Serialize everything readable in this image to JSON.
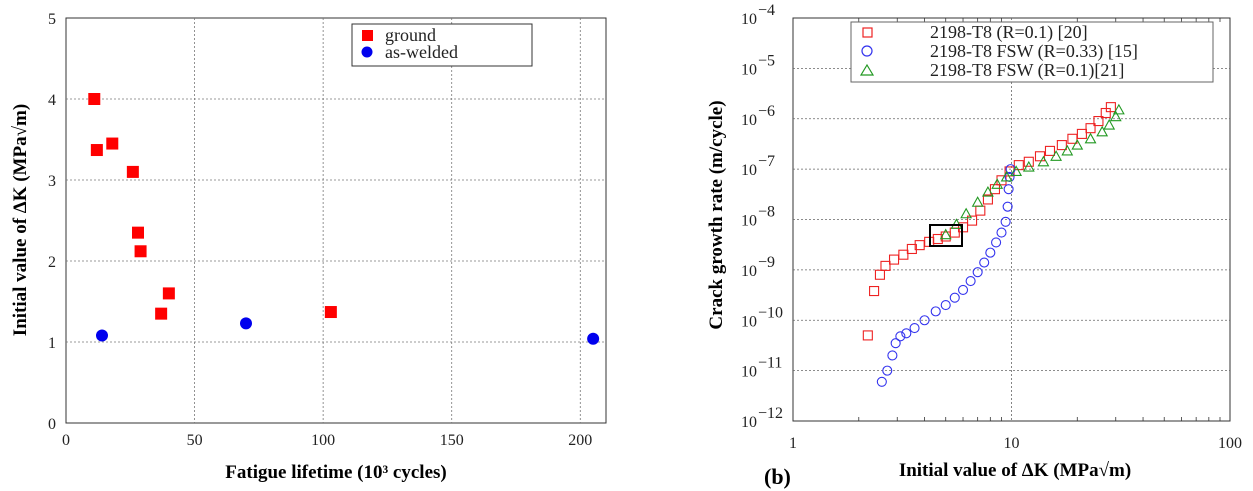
{
  "chart_data": [
    {
      "type": "scatter",
      "title": "",
      "xlabel": "Fatigue lifetime (10³ cycles)",
      "ylabel": "Initial value of ΔK (MPa√m)",
      "xlim": [
        0,
        210
      ],
      "ylim": [
        0,
        5
      ],
      "x_ticks": [
        "0",
        "50",
        "100",
        "150",
        "200"
      ],
      "y_ticks": [
        "0",
        "1",
        "2",
        "3",
        "4",
        "5"
      ],
      "grid": true,
      "legend_position": "top-right",
      "series": [
        {
          "name": "ground",
          "marker": "filled-square",
          "color": "#ff0000",
          "points": [
            {
              "x": 11,
              "y": 4.0
            },
            {
              "x": 12,
              "y": 3.37
            },
            {
              "x": 18,
              "y": 3.45
            },
            {
              "x": 26,
              "y": 3.1
            },
            {
              "x": 28,
              "y": 2.35
            },
            {
              "x": 29,
              "y": 2.12
            },
            {
              "x": 40,
              "y": 1.6
            },
            {
              "x": 37,
              "y": 1.35
            },
            {
              "x": 103,
              "y": 1.37
            }
          ]
        },
        {
          "name": "as-welded",
          "marker": "filled-circle",
          "color": "#0000ee",
          "points": [
            {
              "x": 14,
              "y": 1.08
            },
            {
              "x": 70,
              "y": 1.23
            },
            {
              "x": 205,
              "y": 1.04
            }
          ]
        }
      ]
    },
    {
      "type": "scatter",
      "title": "",
      "panel_label": "(b)",
      "xlabel": "Initial value of ΔK (MPa√m)",
      "ylabel": "Crack growth rate (m/cycle)",
      "x_scale": "log",
      "y_scale": "log",
      "xlim": [
        1,
        100
      ],
      "ylim": [
        1e-12,
        0.0001
      ],
      "x_ticks": [
        "1",
        "10",
        "100"
      ],
      "y_ticks": [
        "10",
        "10",
        "10",
        "10",
        "10",
        "10",
        "10",
        "10",
        "10"
      ],
      "y_tick_exponents": [
        "−12",
        "−11",
        "−10",
        "−9",
        "−8",
        "−7",
        "−6",
        "−5",
        "−4"
      ],
      "grid": true,
      "legend_position": "top-right",
      "annotation": "black rectangle around ΔK ≈ 4.3–5.9, da/dN ≈ 3e-9–7e-9",
      "series": [
        {
          "name": "2198-T8 (R=0.1) [20]",
          "marker": "open-square",
          "color": "#ee2222",
          "points": [
            {
              "x": 2.2,
              "y": 5e-11
            },
            {
              "x": 2.35,
              "y": 3.8e-10
            },
            {
              "x": 2.5,
              "y": 8e-10
            },
            {
              "x": 2.65,
              "y": 1.2e-09
            },
            {
              "x": 2.9,
              "y": 1.6e-09
            },
            {
              "x": 3.2,
              "y": 2e-09
            },
            {
              "x": 3.5,
              "y": 2.6e-09
            },
            {
              "x": 3.8,
              "y": 3.1e-09
            },
            {
              "x": 4.2,
              "y": 3.6e-09
            },
            {
              "x": 4.6,
              "y": 4.1e-09
            },
            {
              "x": 5.0,
              "y": 4.6e-09
            },
            {
              "x": 5.5,
              "y": 5.5e-09
            },
            {
              "x": 6.0,
              "y": 7e-09
            },
            {
              "x": 6.6,
              "y": 9.5e-09
            },
            {
              "x": 7.2,
              "y": 1.5e-08
            },
            {
              "x": 7.8,
              "y": 2.5e-08
            },
            {
              "x": 8.4,
              "y": 4e-08
            },
            {
              "x": 9.0,
              "y": 6e-08
            },
            {
              "x": 9.8,
              "y": 9e-08
            },
            {
              "x": 10.8,
              "y": 1.2e-07
            },
            {
              "x": 12,
              "y": 1.4e-07
            },
            {
              "x": 13.5,
              "y": 1.8e-07
            },
            {
              "x": 15,
              "y": 2.3e-07
            },
            {
              "x": 17,
              "y": 3e-07
            },
            {
              "x": 19,
              "y": 4e-07
            },
            {
              "x": 21,
              "y": 5e-07
            },
            {
              "x": 23,
              "y": 6.5e-07
            },
            {
              "x": 25,
              "y": 9e-07
            },
            {
              "x": 27,
              "y": 1.3e-06
            },
            {
              "x": 28.5,
              "y": 1.7e-06
            }
          ]
        },
        {
          "name": "2198-T8 FSW (R=0.33) [15]",
          "marker": "open-circle",
          "color": "#3333ee",
          "points": [
            {
              "x": 2.55,
              "y": 6e-12
            },
            {
              "x": 2.7,
              "y": 1e-11
            },
            {
              "x": 2.85,
              "y": 2e-11
            },
            {
              "x": 2.95,
              "y": 3.5e-11
            },
            {
              "x": 3.1,
              "y": 4.8e-11
            },
            {
              "x": 3.3,
              "y": 5.5e-11
            },
            {
              "x": 3.6,
              "y": 7e-11
            },
            {
              "x": 4.0,
              "y": 1e-10
            },
            {
              "x": 4.5,
              "y": 1.5e-10
            },
            {
              "x": 5.0,
              "y": 2e-10
            },
            {
              "x": 5.5,
              "y": 2.8e-10
            },
            {
              "x": 6.0,
              "y": 4e-10
            },
            {
              "x": 6.5,
              "y": 6e-10
            },
            {
              "x": 7.0,
              "y": 9e-10
            },
            {
              "x": 7.5,
              "y": 1.4e-09
            },
            {
              "x": 8.0,
              "y": 2.2e-09
            },
            {
              "x": 8.5,
              "y": 3.5e-09
            },
            {
              "x": 9.0,
              "y": 5.5e-09
            },
            {
              "x": 9.4,
              "y": 9e-09
            },
            {
              "x": 9.6,
              "y": 1.8e-08
            },
            {
              "x": 9.7,
              "y": 4e-08
            },
            {
              "x": 9.8,
              "y": 7e-08
            },
            {
              "x": 9.9,
              "y": 1e-07
            }
          ]
        },
        {
          "name": "2198-T8 FSW (R=0.1)[21]",
          "marker": "open-triangle",
          "color": "#229922",
          "points": [
            {
              "x": 5.0,
              "y": 5e-09
            },
            {
              "x": 5.6,
              "y": 8e-09
            },
            {
              "x": 6.2,
              "y": 1.3e-08
            },
            {
              "x": 7.0,
              "y": 2.2e-08
            },
            {
              "x": 7.8,
              "y": 3.5e-08
            },
            {
              "x": 8.6,
              "y": 5e-08
            },
            {
              "x": 9.5,
              "y": 7e-08
            },
            {
              "x": 10.5,
              "y": 9e-08
            },
            {
              "x": 12,
              "y": 1.1e-07
            },
            {
              "x": 14,
              "y": 1.4e-07
            },
            {
              "x": 16,
              "y": 1.8e-07
            },
            {
              "x": 18,
              "y": 2.3e-07
            },
            {
              "x": 20,
              "y": 3e-07
            },
            {
              "x": 23,
              "y": 4e-07
            },
            {
              "x": 26,
              "y": 5.5e-07
            },
            {
              "x": 28,
              "y": 7.5e-07
            },
            {
              "x": 30,
              "y": 1.1e-06
            },
            {
              "x": 31,
              "y": 1.5e-06
            }
          ]
        }
      ]
    }
  ]
}
